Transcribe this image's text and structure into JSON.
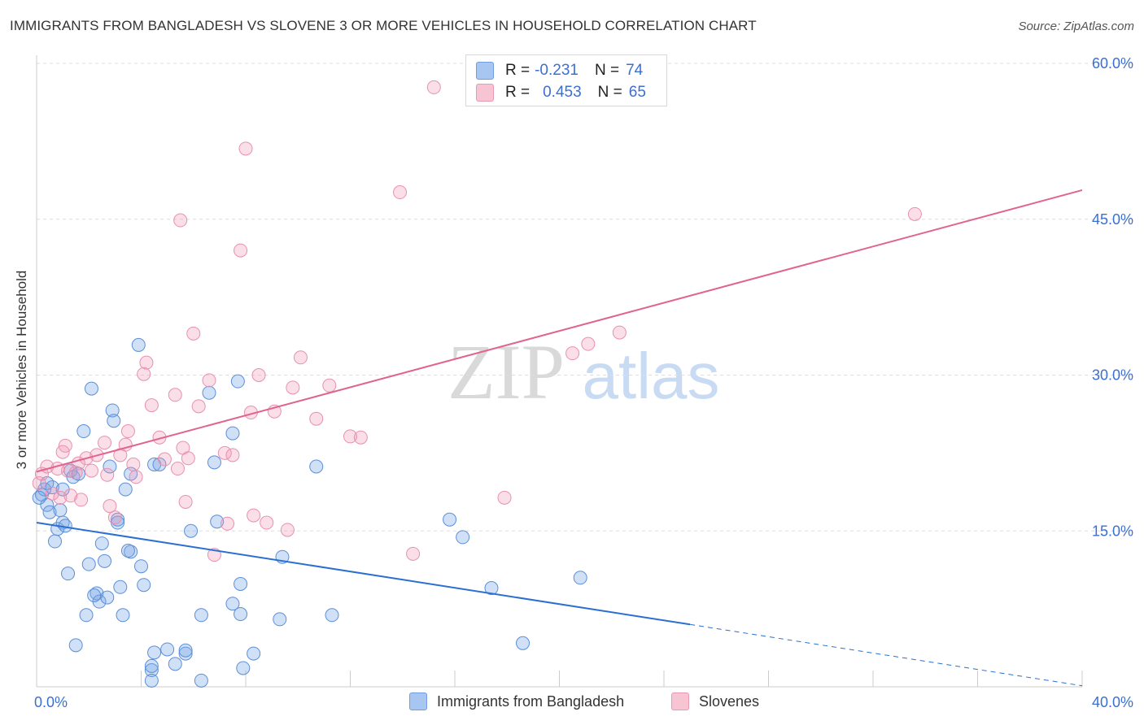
{
  "title": "IMMIGRANTS FROM BANGLADESH VS SLOVENE 3 OR MORE VEHICLES IN HOUSEHOLD CORRELATION CHART",
  "source": "Source: ZipAtlas.com",
  "watermark": {
    "zip": "ZIP",
    "atlas": "atlas"
  },
  "legend_top": {
    "rows": [
      {
        "r_label": "R =",
        "r_value": "-0.231",
        "n_label": "N =",
        "n_value": "74",
        "color": "#a8c6f2"
      },
      {
        "r_label": "R =",
        "r_value": "0.453",
        "n_label": "N =",
        "n_value": "65",
        "color": "#f5b8cb"
      }
    ]
  },
  "legend_bottom": [
    {
      "label": "Immigrants from Bangladesh",
      "color": "#a8c6f2"
    },
    {
      "label": "Slovenes",
      "color": "#f5b8cb"
    }
  ],
  "colors": {
    "blue_fill": "rgba(120,165,230,0.35)",
    "blue_stroke": "#5b8fd8",
    "blue_line": "#2a6fd1",
    "pink_fill": "rgba(240,150,180,0.30)",
    "pink_stroke": "#e890ae",
    "pink_line": "#e0648e",
    "axis_label": "#3b6fd1",
    "grid": "#dddddd"
  },
  "chart_data": {
    "type": "scatter",
    "title": "IMMIGRANTS FROM BANGLADESH VS SLOVENE 3 OR MORE VEHICLES IN HOUSEHOLD CORRELATION CHART",
    "xlabel": "",
    "ylabel": "3 or more Vehicles in Household",
    "xlim": [
      0,
      40
    ],
    "ylim": [
      0,
      60
    ],
    "x_tick_labels": [
      "0.0%",
      "40.0%"
    ],
    "y_ticks": [
      15,
      30,
      45,
      60
    ],
    "y_tick_labels": [
      "15.0%",
      "30.0%",
      "45.0%",
      "60.0%"
    ],
    "grid": true,
    "legend_position": "bottom",
    "series": [
      {
        "name": "Immigrants from Bangladesh",
        "color": "#a8c6f2",
        "trend": {
          "x0": 0,
          "y0": 15.8,
          "x1": 25,
          "y1": 6.0,
          "dash_to_x": 40,
          "dash_to_y": 0.1
        },
        "points": [
          [
            0.2,
            18.5
          ],
          [
            0.3,
            19.0
          ],
          [
            0.4,
            17.5
          ],
          [
            0.5,
            16.8
          ],
          [
            0.6,
            19.2
          ],
          [
            0.7,
            14.0
          ],
          [
            0.8,
            15.2
          ],
          [
            0.9,
            17.0
          ],
          [
            1.0,
            15.8
          ],
          [
            1.1,
            15.5
          ],
          [
            1.3,
            20.8
          ],
          [
            1.4,
            20.2
          ],
          [
            1.6,
            20.5
          ],
          [
            1.8,
            24.6
          ],
          [
            2.1,
            28.7
          ],
          [
            2.3,
            9.0
          ],
          [
            2.4,
            8.2
          ],
          [
            2.6,
            12.1
          ],
          [
            2.8,
            21.2
          ],
          [
            2.9,
            26.6
          ],
          [
            2.95,
            25.6
          ],
          [
            3.1,
            16.1
          ],
          [
            3.1,
            15.8
          ],
          [
            3.2,
            9.6
          ],
          [
            3.4,
            19.0
          ],
          [
            3.6,
            20.5
          ],
          [
            3.6,
            13.0
          ],
          [
            3.9,
            32.9
          ],
          [
            4.0,
            11.6
          ],
          [
            4.4,
            1.6
          ],
          [
            4.4,
            0.6
          ],
          [
            4.4,
            2.0
          ],
          [
            4.5,
            3.3
          ],
          [
            4.5,
            21.4
          ],
          [
            4.7,
            21.4
          ],
          [
            5.0,
            3.6
          ],
          [
            5.3,
            2.2
          ],
          [
            5.7,
            3.2
          ],
          [
            5.7,
            3.5
          ],
          [
            5.9,
            15.0
          ],
          [
            6.3,
            0.6
          ],
          [
            6.3,
            6.9
          ],
          [
            6.6,
            28.3
          ],
          [
            6.8,
            21.6
          ],
          [
            6.9,
            15.9
          ],
          [
            7.5,
            24.4
          ],
          [
            7.5,
            8.0
          ],
          [
            7.7,
            29.4
          ],
          [
            7.8,
            9.9
          ],
          [
            7.8,
            7.0
          ],
          [
            7.9,
            1.8
          ],
          [
            8.3,
            3.2
          ],
          [
            9.3,
            6.5
          ],
          [
            9.4,
            12.5
          ],
          [
            10.7,
            21.2
          ],
          [
            11.3,
            6.9
          ],
          [
            15.8,
            16.1
          ],
          [
            16.3,
            14.4
          ],
          [
            17.4,
            9.5
          ],
          [
            18.6,
            4.2
          ],
          [
            20.8,
            10.5
          ],
          [
            1.2,
            10.9
          ],
          [
            1.5,
            4.0
          ],
          [
            2.0,
            11.8
          ],
          [
            2.5,
            13.8
          ],
          [
            0.1,
            18.2
          ],
          [
            0.4,
            19.6
          ],
          [
            3.5,
            13.1
          ],
          [
            1.9,
            6.9
          ],
          [
            2.7,
            8.6
          ],
          [
            3.3,
            6.9
          ],
          [
            4.1,
            9.8
          ],
          [
            2.2,
            8.8
          ],
          [
            1.0,
            19.0
          ]
        ]
      },
      {
        "name": "Slovenes",
        "color": "#f5b8cb",
        "trend": {
          "x0": 0,
          "y0": 20.7,
          "x1": 40,
          "y1": 47.8
        },
        "points": [
          [
            0.1,
            19.6
          ],
          [
            0.2,
            20.5
          ],
          [
            0.4,
            21.2
          ],
          [
            0.6,
            18.6
          ],
          [
            0.8,
            21.0
          ],
          [
            0.9,
            18.2
          ],
          [
            1.0,
            22.6
          ],
          [
            1.1,
            23.2
          ],
          [
            1.2,
            20.8
          ],
          [
            1.3,
            18.4
          ],
          [
            1.5,
            20.6
          ],
          [
            1.6,
            21.5
          ],
          [
            1.7,
            18.0
          ],
          [
            1.9,
            22.0
          ],
          [
            2.1,
            20.8
          ],
          [
            2.3,
            22.3
          ],
          [
            2.6,
            23.5
          ],
          [
            2.7,
            20.4
          ],
          [
            2.8,
            17.4
          ],
          [
            3.0,
            16.3
          ],
          [
            3.2,
            22.3
          ],
          [
            3.4,
            23.3
          ],
          [
            3.5,
            24.6
          ],
          [
            3.7,
            21.4
          ],
          [
            3.8,
            20.2
          ],
          [
            4.1,
            30.1
          ],
          [
            4.2,
            31.2
          ],
          [
            4.4,
            27.1
          ],
          [
            4.7,
            24.0
          ],
          [
            4.9,
            21.9
          ],
          [
            5.3,
            28.1
          ],
          [
            5.4,
            21.0
          ],
          [
            5.6,
            23.0
          ],
          [
            5.7,
            17.8
          ],
          [
            5.8,
            22.0
          ],
          [
            6.0,
            34.0
          ],
          [
            6.2,
            27.0
          ],
          [
            6.6,
            29.5
          ],
          [
            6.8,
            12.7
          ],
          [
            7.2,
            22.5
          ],
          [
            7.3,
            15.7
          ],
          [
            7.5,
            22.3
          ],
          [
            7.8,
            42.0
          ],
          [
            8.0,
            51.8
          ],
          [
            8.2,
            26.4
          ],
          [
            8.3,
            16.5
          ],
          [
            8.5,
            30.0
          ],
          [
            8.8,
            15.8
          ],
          [
            9.1,
            26.5
          ],
          [
            9.6,
            15.1
          ],
          [
            9.8,
            28.8
          ],
          [
            10.1,
            31.7
          ],
          [
            10.7,
            25.8
          ],
          [
            11.2,
            29.0
          ],
          [
            12.0,
            24.1
          ],
          [
            12.4,
            24.0
          ],
          [
            13.9,
            47.6
          ],
          [
            15.2,
            57.7
          ],
          [
            14.4,
            12.8
          ],
          [
            17.9,
            18.2
          ],
          [
            20.5,
            32.1
          ],
          [
            21.1,
            33.0
          ],
          [
            22.3,
            34.1
          ],
          [
            33.6,
            45.5
          ],
          [
            5.5,
            44.9
          ]
        ]
      }
    ]
  }
}
